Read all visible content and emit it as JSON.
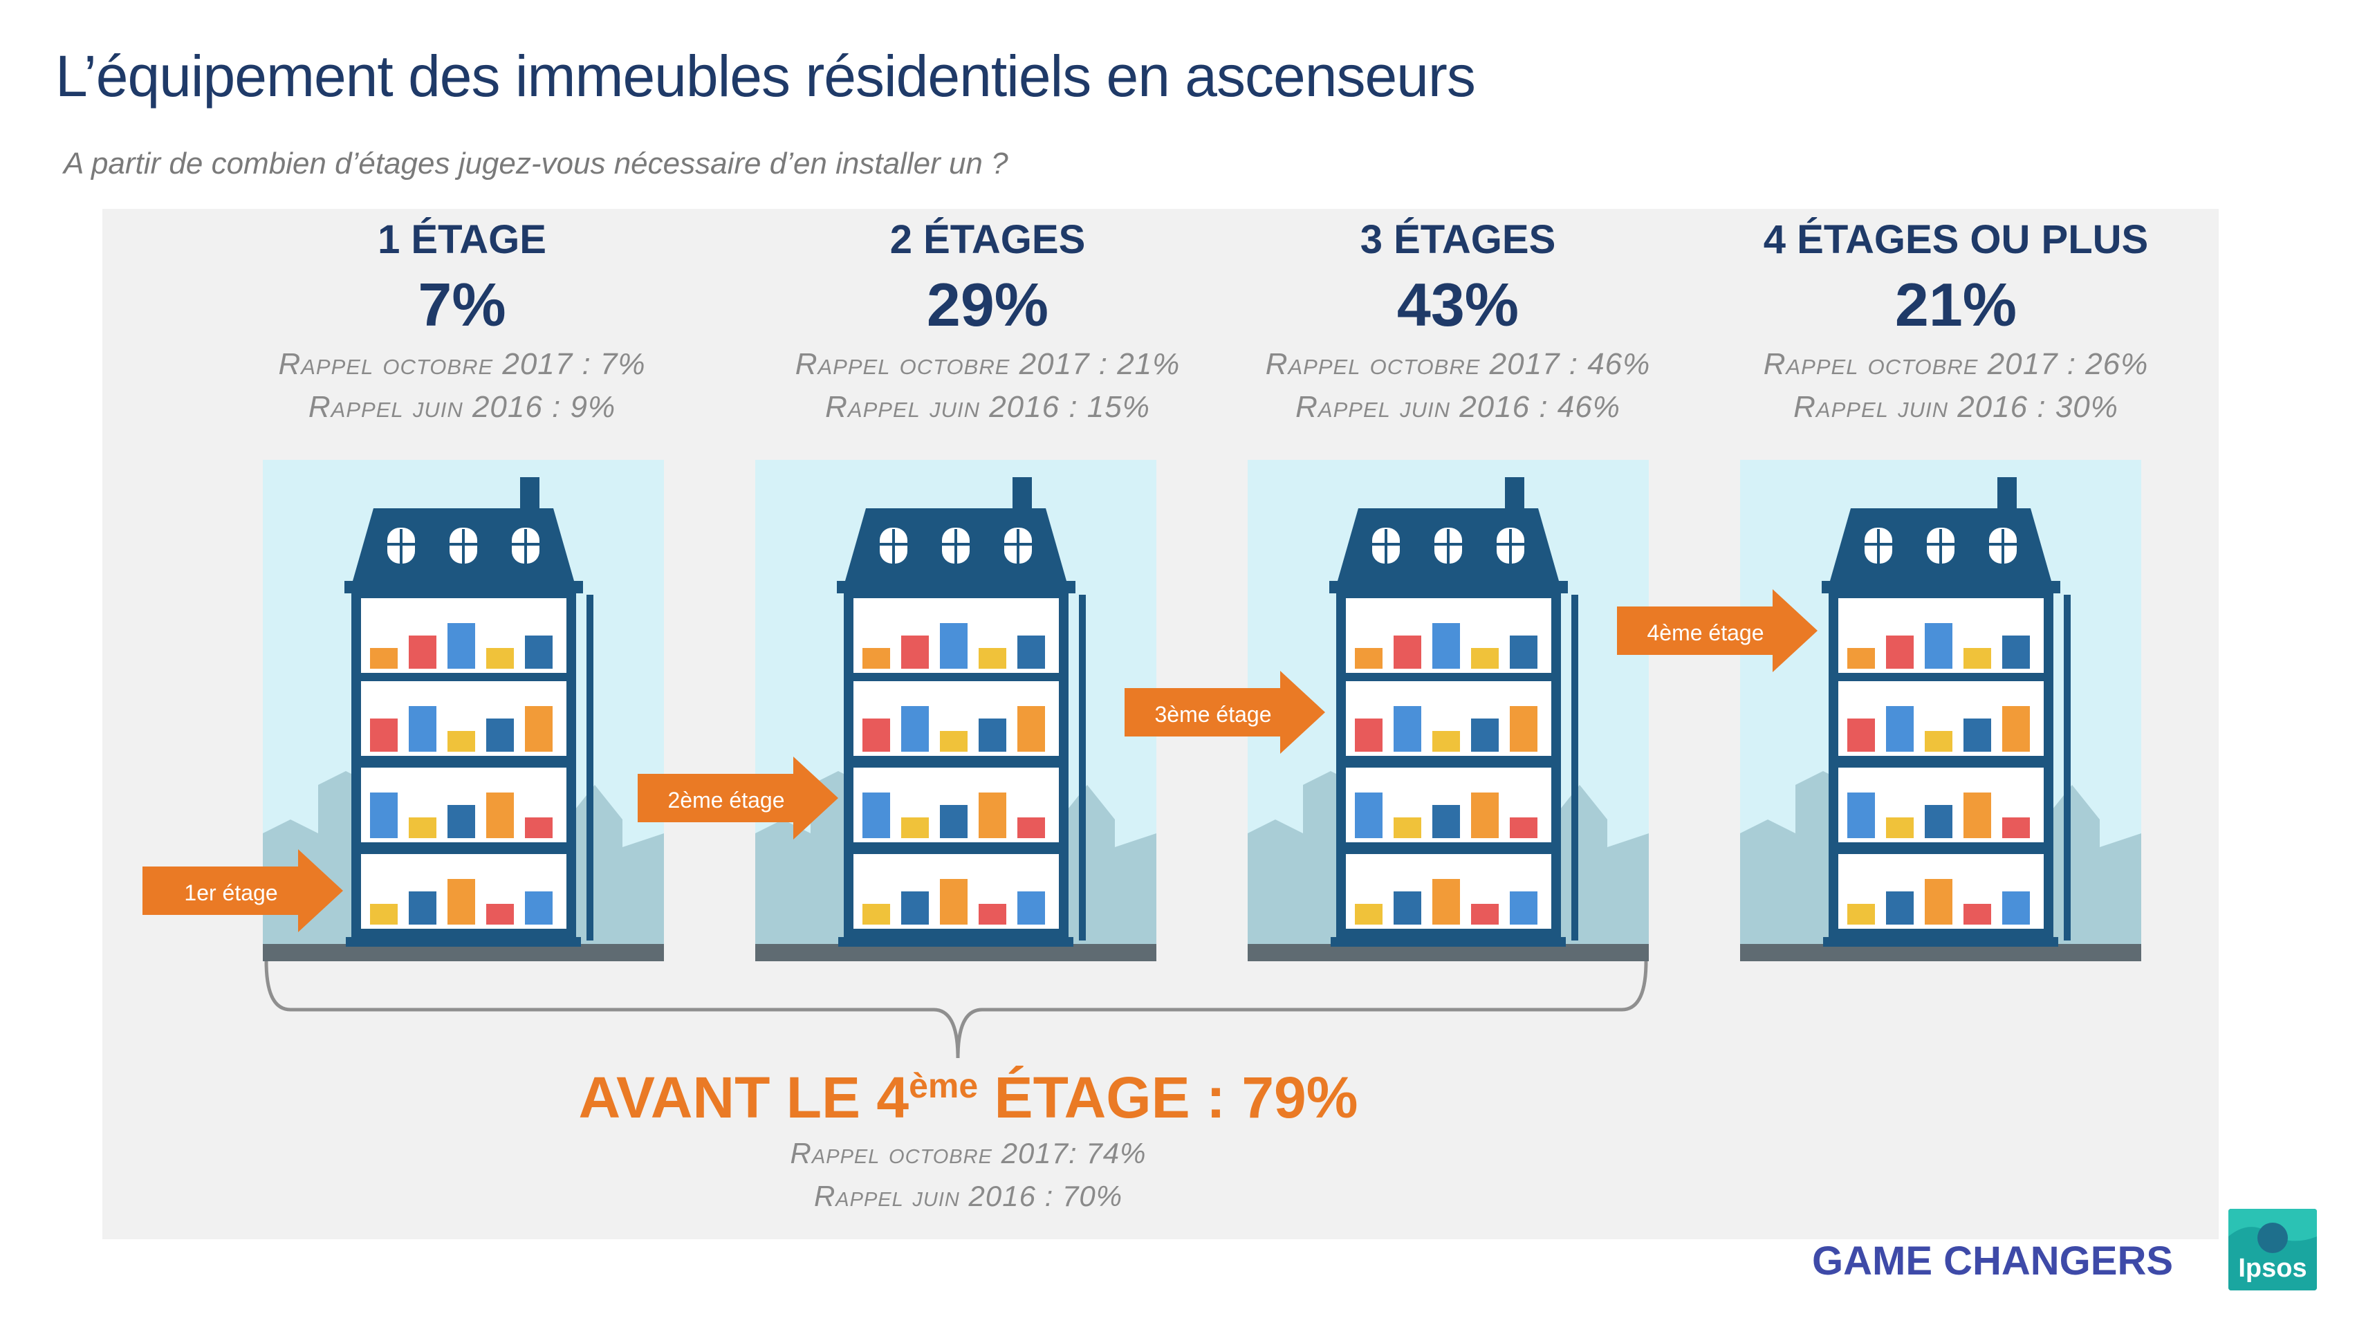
{
  "title": "L’équipement des immeubles résidentiels en ascenseurs",
  "subtitle": "A partir de combien d’étages jugez-vous nécessaire d’en installer un ?",
  "chart_data": {
    "type": "bar",
    "categories": [
      "1 ÉTAGE",
      "2 ÉTAGES",
      "3 ÉTAGES",
      "4 ÉTAGES OU PLUS"
    ],
    "values": [
      7,
      29,
      43,
      21
    ],
    "value_labels": [
      "7%",
      "29%",
      "43%",
      "21%"
    ],
    "recall_oct_2017": [
      "Rappel octobre 2017 : 7%",
      "Rappel octobre 2017 : 21%",
      "Rappel octobre 2017 : 46%",
      "Rappel octobre 2017 : 26%"
    ],
    "recall_jun_2016": [
      "Rappel juin 2016 : 9%",
      "Rappel juin 2016 : 15%",
      "Rappel juin 2016 : 46%",
      "Rappel juin 2016 : 30%"
    ],
    "floor_values": [
      1,
      2,
      3,
      4
    ],
    "arrow_labels": [
      "1er étage",
      "2ème étage",
      "3ème étage",
      "4ème étage"
    ]
  },
  "summary": {
    "prefix": "AVANT LE 4",
    "sup": "ème",
    "suffix": " ÉTAGE : 79%",
    "recall_oct_2017": "Rappel octobre 2017: 74%",
    "recall_jun_2016": "Rappel juin 2016 : 70%"
  },
  "footer": "GAME CHANGERS",
  "logo": "Ipsos",
  "colors": {
    "navy": "#1f3a68",
    "orange": "#ea7a25",
    "sky": "#d6f2f8",
    "building": "#1d5680"
  }
}
